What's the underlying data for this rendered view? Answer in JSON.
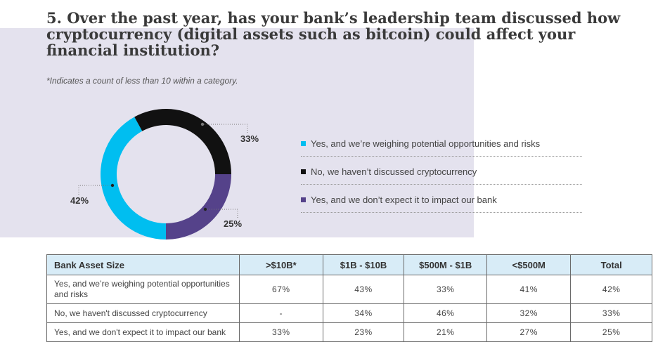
{
  "title": "5.  Over the past year, has your bank’s leadership team discussed how cryptocurrency (digital assets such as bitcoin) could affect your financial institution?",
  "footnote": "*Indicates a count of less than 10 within a category.",
  "colors": {
    "panel": "#e4e2ee",
    "cyan": "#00bef0",
    "black": "#111111",
    "purple": "#55428a",
    "table_header": "#d8ecf7"
  },
  "chart_data": {
    "type": "pie",
    "variant": "donut",
    "title": "",
    "categories": [
      "Yes, and we’re weighing potential opportunities and risks",
      "No, we haven’t discussed cryptocurrency",
      "Yes, and we don’t expect it to impact our bank"
    ],
    "values": [
      42,
      33,
      25
    ],
    "value_labels": [
      "42%",
      "33%",
      "25%"
    ],
    "colors": [
      "#00bef0",
      "#111111",
      "#55428a"
    ],
    "legend_position": "right"
  },
  "table": {
    "headers": [
      "Bank Asset Size",
      ">$10B*",
      "$1B - $10B",
      "$500M - $1B",
      "<$500M",
      "Total"
    ],
    "rows": [
      [
        "Yes, and we’re weighing potential opportunities and risks",
        "67%",
        "43%",
        "33%",
        "41%",
        "42%"
      ],
      [
        "No, we haven't discussed cryptocurrency",
        "-",
        "34%",
        "46%",
        "32%",
        "33%"
      ],
      [
        "Yes, and we don't expect it to impact our bank",
        "33%",
        "23%",
        "21%",
        "27%",
        "25%"
      ]
    ]
  }
}
